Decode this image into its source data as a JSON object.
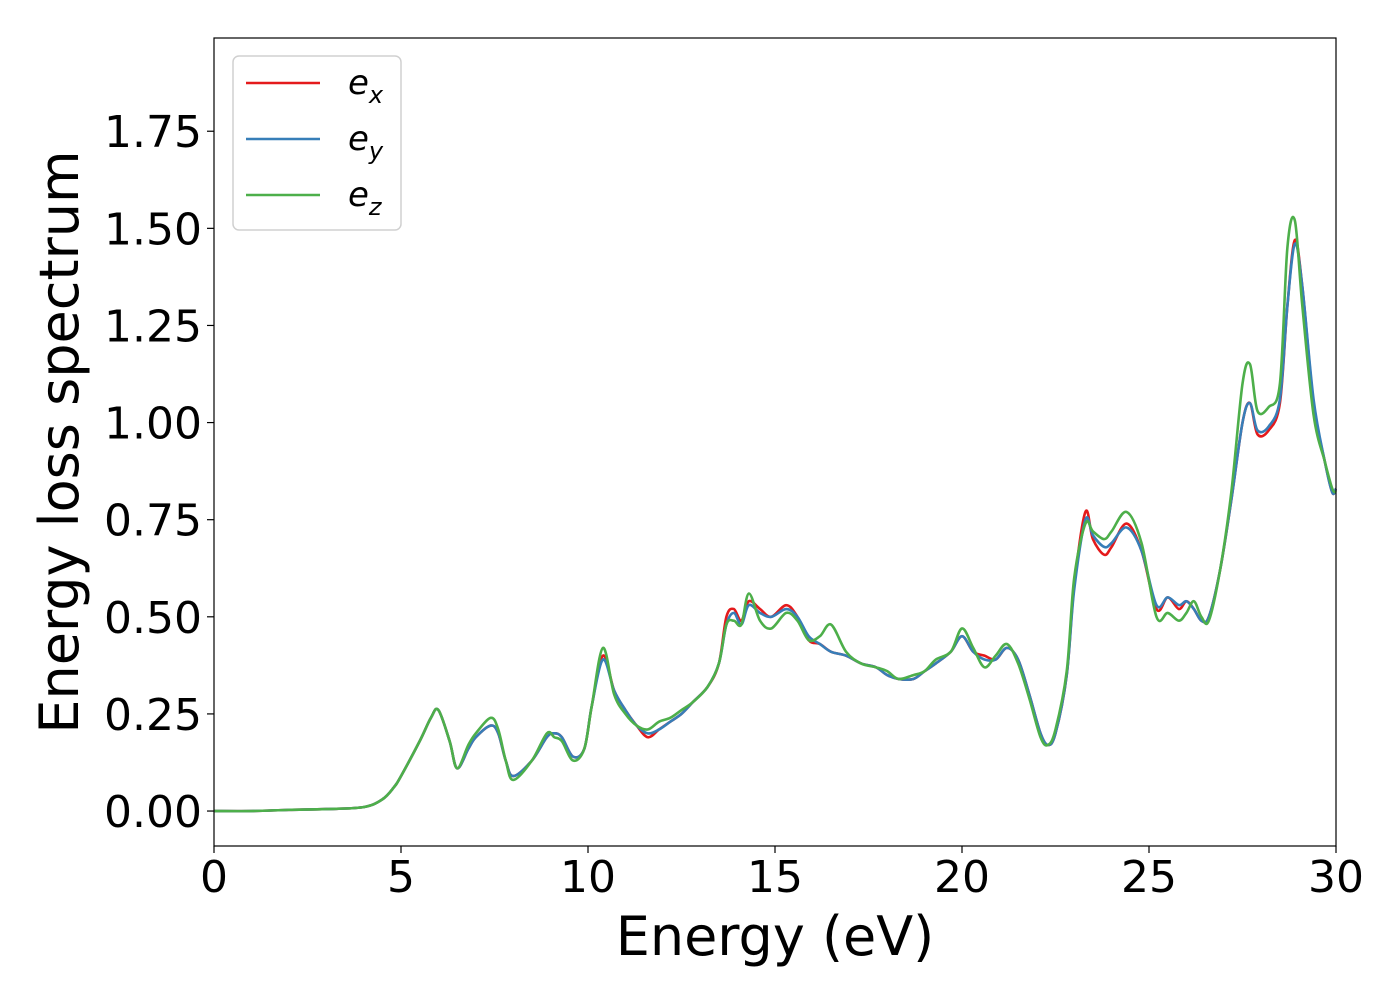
{
  "chart_data": {
    "type": "line",
    "xlabel": "Energy (eV)",
    "ylabel": "Energy loss spectrum",
    "xlim": [
      0,
      30
    ],
    "ylim": [
      -0.09,
      1.99
    ],
    "xticks": [
      0,
      5,
      10,
      15,
      20,
      25,
      30
    ],
    "xtick_labels": [
      "0",
      "5",
      "10",
      "15",
      "20",
      "25",
      "30"
    ],
    "yticks": [
      0.0,
      0.25,
      0.5,
      0.75,
      1.0,
      1.25,
      1.5,
      1.75
    ],
    "ytick_labels": [
      "0.00",
      "0.25",
      "0.50",
      "0.75",
      "1.00",
      "1.25",
      "1.50",
      "1.75"
    ],
    "grid": false,
    "legend_position": "upper-left",
    "series": [
      {
        "name": "e_x",
        "label_base": "e",
        "label_sub": "x",
        "color": "#e41a1c",
        "x": [
          0,
          1,
          2,
          3,
          4,
          4.5,
          4.8,
          5.0,
          5.5,
          5.8,
          6.0,
          6.3,
          6.5,
          6.8,
          7.0,
          7.4,
          7.6,
          7.8,
          8.0,
          8.5,
          8.9,
          9.1,
          9.3,
          9.6,
          9.9,
          10.1,
          10.4,
          10.7,
          11.0,
          11.3,
          11.6,
          11.9,
          12.2,
          12.5,
          12.8,
          13.2,
          13.5,
          13.7,
          13.9,
          14.1,
          14.3,
          14.6,
          14.9,
          15.3,
          15.6,
          15.9,
          16.2,
          16.5,
          16.9,
          17.3,
          17.7,
          18.0,
          18.3,
          18.7,
          19.0,
          19.3,
          19.7,
          20.0,
          20.3,
          20.6,
          20.9,
          21.2,
          21.5,
          21.8,
          22.1,
          22.3,
          22.5,
          22.8,
          23.0,
          23.3,
          23.5,
          23.8,
          24.0,
          24.4,
          24.8,
          25.2,
          25.5,
          25.8,
          26.0,
          26.2,
          26.4,
          26.6,
          26.9,
          27.2,
          27.5,
          27.7,
          27.9,
          28.2,
          28.5,
          28.7,
          28.9,
          29.1,
          29.4,
          29.7,
          29.9,
          30.0
        ],
        "y": [
          0,
          0,
          0.003,
          0.005,
          0.01,
          0.03,
          0.06,
          0.09,
          0.18,
          0.24,
          0.26,
          0.18,
          0.11,
          0.16,
          0.19,
          0.22,
          0.2,
          0.13,
          0.09,
          0.13,
          0.19,
          0.2,
          0.19,
          0.14,
          0.16,
          0.27,
          0.4,
          0.31,
          0.26,
          0.22,
          0.19,
          0.21,
          0.23,
          0.25,
          0.28,
          0.32,
          0.38,
          0.5,
          0.52,
          0.49,
          0.54,
          0.52,
          0.5,
          0.53,
          0.5,
          0.44,
          0.43,
          0.41,
          0.4,
          0.38,
          0.37,
          0.35,
          0.34,
          0.34,
          0.36,
          0.38,
          0.41,
          0.45,
          0.41,
          0.4,
          0.39,
          0.42,
          0.39,
          0.3,
          0.2,
          0.17,
          0.2,
          0.35,
          0.58,
          0.77,
          0.7,
          0.66,
          0.68,
          0.74,
          0.67,
          0.52,
          0.55,
          0.52,
          0.54,
          0.52,
          0.49,
          0.5,
          0.62,
          0.8,
          1.0,
          1.05,
          0.97,
          0.98,
          1.05,
          1.3,
          1.47,
          1.35,
          1.05,
          0.9,
          0.82,
          0.83
        ]
      },
      {
        "name": "e_y",
        "label_base": "e",
        "label_sub": "y",
        "color": "#377eb8",
        "x": [
          0,
          1,
          2,
          3,
          4,
          4.5,
          4.8,
          5.0,
          5.5,
          5.8,
          6.0,
          6.3,
          6.5,
          6.8,
          7.0,
          7.4,
          7.6,
          7.8,
          8.0,
          8.5,
          8.9,
          9.1,
          9.3,
          9.6,
          9.9,
          10.1,
          10.4,
          10.7,
          11.0,
          11.3,
          11.6,
          11.9,
          12.2,
          12.5,
          12.8,
          13.2,
          13.5,
          13.7,
          13.9,
          14.1,
          14.3,
          14.6,
          14.9,
          15.3,
          15.6,
          15.9,
          16.2,
          16.5,
          16.9,
          17.3,
          17.7,
          18.0,
          18.3,
          18.7,
          19.0,
          19.3,
          19.7,
          20.0,
          20.3,
          20.6,
          20.9,
          21.2,
          21.5,
          21.8,
          22.1,
          22.3,
          22.5,
          22.8,
          23.0,
          23.3,
          23.5,
          23.8,
          24.0,
          24.4,
          24.8,
          25.2,
          25.5,
          25.8,
          26.0,
          26.2,
          26.4,
          26.6,
          26.9,
          27.2,
          27.5,
          27.7,
          27.9,
          28.2,
          28.5,
          28.7,
          28.9,
          29.1,
          29.4,
          29.7,
          29.9,
          30.0
        ],
        "y": [
          0,
          0,
          0.003,
          0.005,
          0.01,
          0.03,
          0.06,
          0.09,
          0.18,
          0.24,
          0.26,
          0.18,
          0.11,
          0.16,
          0.19,
          0.22,
          0.2,
          0.13,
          0.09,
          0.13,
          0.19,
          0.2,
          0.19,
          0.14,
          0.16,
          0.27,
          0.39,
          0.31,
          0.26,
          0.22,
          0.2,
          0.21,
          0.23,
          0.25,
          0.28,
          0.32,
          0.38,
          0.48,
          0.51,
          0.48,
          0.53,
          0.51,
          0.5,
          0.52,
          0.5,
          0.45,
          0.43,
          0.41,
          0.4,
          0.38,
          0.37,
          0.35,
          0.34,
          0.34,
          0.36,
          0.38,
          0.41,
          0.45,
          0.41,
          0.39,
          0.39,
          0.42,
          0.39,
          0.3,
          0.2,
          0.17,
          0.2,
          0.35,
          0.57,
          0.75,
          0.71,
          0.68,
          0.69,
          0.73,
          0.67,
          0.53,
          0.55,
          0.53,
          0.54,
          0.52,
          0.49,
          0.5,
          0.62,
          0.8,
          1.0,
          1.05,
          0.98,
          0.99,
          1.06,
          1.3,
          1.46,
          1.35,
          1.06,
          0.9,
          0.82,
          0.83
        ]
      },
      {
        "name": "e_z",
        "label_base": "e",
        "label_sub": "z",
        "color": "#4daf4a",
        "x": [
          0,
          1,
          2,
          3,
          4,
          4.5,
          4.8,
          5.0,
          5.5,
          5.8,
          6.0,
          6.3,
          6.5,
          6.8,
          7.0,
          7.4,
          7.6,
          7.8,
          8.0,
          8.5,
          8.9,
          9.1,
          9.3,
          9.6,
          9.9,
          10.1,
          10.4,
          10.7,
          11.0,
          11.3,
          11.6,
          11.9,
          12.2,
          12.5,
          12.8,
          13.2,
          13.5,
          13.7,
          13.9,
          14.1,
          14.3,
          14.6,
          14.9,
          15.3,
          15.6,
          15.9,
          16.2,
          16.5,
          16.9,
          17.3,
          17.7,
          18.0,
          18.3,
          18.7,
          19.0,
          19.3,
          19.7,
          20.0,
          20.3,
          20.6,
          20.9,
          21.2,
          21.5,
          21.8,
          22.1,
          22.3,
          22.5,
          22.8,
          23.0,
          23.3,
          23.5,
          23.8,
          24.0,
          24.4,
          24.8,
          25.2,
          25.5,
          25.8,
          26.0,
          26.2,
          26.4,
          26.6,
          26.9,
          27.2,
          27.5,
          27.7,
          27.9,
          28.2,
          28.5,
          28.7,
          28.9,
          29.1,
          29.4,
          29.7,
          29.9,
          30.0
        ],
        "y": [
          0,
          0,
          0.003,
          0.005,
          0.01,
          0.03,
          0.06,
          0.09,
          0.18,
          0.24,
          0.26,
          0.18,
          0.11,
          0.17,
          0.2,
          0.24,
          0.21,
          0.13,
          0.08,
          0.13,
          0.2,
          0.19,
          0.18,
          0.13,
          0.16,
          0.27,
          0.42,
          0.3,
          0.25,
          0.22,
          0.21,
          0.23,
          0.24,
          0.26,
          0.28,
          0.32,
          0.38,
          0.48,
          0.49,
          0.48,
          0.56,
          0.49,
          0.47,
          0.51,
          0.49,
          0.44,
          0.45,
          0.48,
          0.41,
          0.38,
          0.37,
          0.36,
          0.34,
          0.35,
          0.36,
          0.39,
          0.41,
          0.47,
          0.42,
          0.37,
          0.4,
          0.43,
          0.38,
          0.29,
          0.19,
          0.17,
          0.21,
          0.36,
          0.6,
          0.74,
          0.72,
          0.7,
          0.72,
          0.77,
          0.69,
          0.5,
          0.51,
          0.49,
          0.51,
          0.54,
          0.5,
          0.49,
          0.62,
          0.82,
          1.1,
          1.15,
          1.03,
          1.04,
          1.1,
          1.45,
          1.52,
          1.3,
          1.02,
          0.9,
          0.83,
          0.82
        ]
      }
    ]
  }
}
